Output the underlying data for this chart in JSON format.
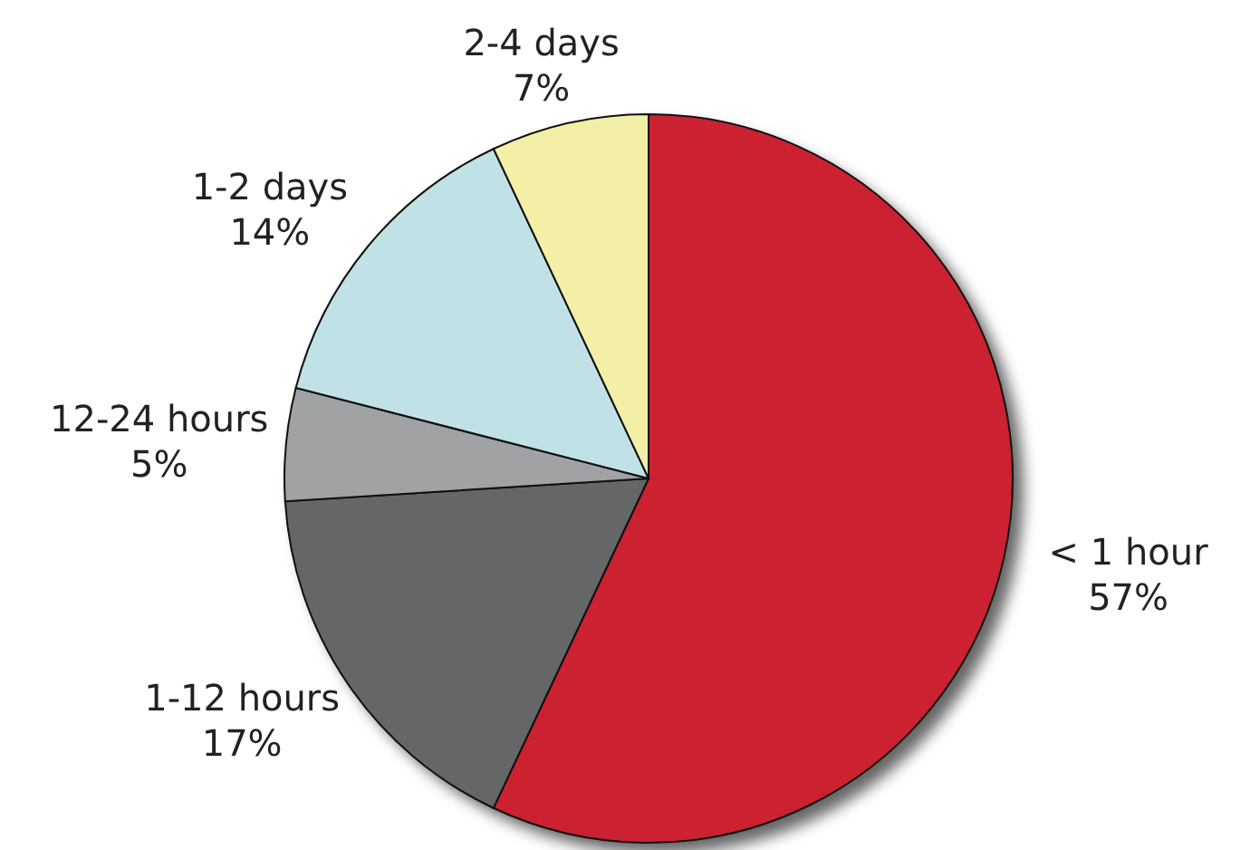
{
  "chart_data": {
    "type": "pie",
    "categories": [
      "< 1 hour",
      "1-12 hours",
      "12-24 hours",
      "1-2 days",
      "2-4 days"
    ],
    "values": [
      57,
      17,
      5,
      14,
      7
    ],
    "colors": [
      "#cc2130",
      "#656667",
      "#a1a2a4",
      "#c0e2e6",
      "#f4efa6"
    ],
    "value_labels": [
      "57%",
      "17%",
      "5%",
      "14%",
      "7%"
    ]
  }
}
